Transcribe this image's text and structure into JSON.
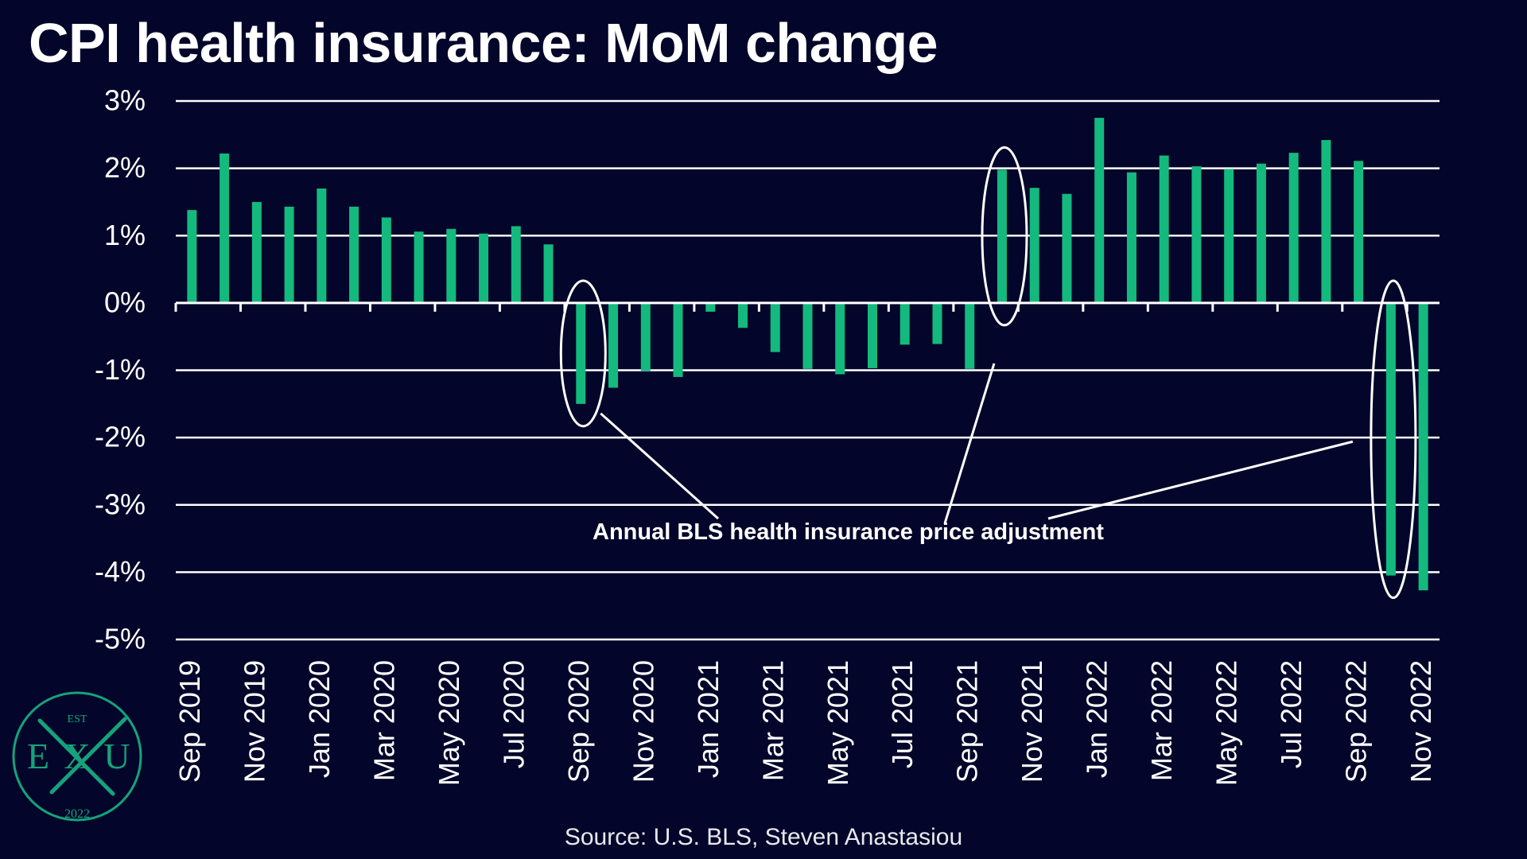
{
  "chart_data": {
    "type": "bar",
    "title": "CPI health insurance: MoM change",
    "source": "Source: U.S. BLS, Steven Anastasiou",
    "ylim": [
      -5,
      3
    ],
    "yticks": [
      3,
      2,
      1,
      0,
      -1,
      -2,
      -3,
      -4,
      -5
    ],
    "ytick_labels": [
      "3%",
      "2%",
      "1%",
      "0%",
      "-1%",
      "-2%",
      "-3%",
      "-4%",
      "-5%"
    ],
    "grid": true,
    "categories": [
      "Sep 2019",
      "Oct 2019",
      "Nov 2019",
      "Dec 2019",
      "Jan 2020",
      "Feb 2020",
      "Mar 2020",
      "Apr 2020",
      "May 2020",
      "Jun 2020",
      "Jul 2020",
      "Aug 2020",
      "Sep 2020",
      "Oct 2020",
      "Nov 2020",
      "Dec 2020",
      "Jan 2021",
      "Feb 2021",
      "Mar 2021",
      "Apr 2021",
      "May 2021",
      "Jun 2021",
      "Jul 2021",
      "Aug 2021",
      "Sep 2021",
      "Oct 2021",
      "Nov 2021",
      "Dec 2021",
      "Jan 2022",
      "Feb 2022",
      "Mar 2022",
      "Apr 2022",
      "May 2022",
      "Jun 2022",
      "Jul 2022",
      "Aug 2022",
      "Sep 2022",
      "Oct 2022",
      "Nov 2022"
    ],
    "xtick_labels": [
      "Sep 2019",
      "Nov 2019",
      "Jan 2020",
      "Mar 2020",
      "May 2020",
      "Jul 2020",
      "Sep 2020",
      "Nov 2020",
      "Jan 2021",
      "Mar 2021",
      "May 2021",
      "Jul 2021",
      "Sep 2021",
      "Nov 2021",
      "Jan 2022",
      "Mar 2022",
      "May 2022",
      "Jul 2022",
      "Sep 2022",
      "Nov 2022"
    ],
    "values": [
      1.38,
      2.22,
      1.5,
      1.43,
      1.7,
      1.43,
      1.27,
      1.06,
      1.1,
      1.03,
      1.14,
      0.87,
      -1.5,
      -1.26,
      -1.01,
      -1.1,
      -0.13,
      -0.37,
      -0.73,
      -0.98,
      -1.06,
      -0.97,
      -0.62,
      -0.61,
      -0.98,
      1.98,
      1.71,
      1.62,
      2.75,
      1.94,
      2.19,
      2.03,
      1.99,
      2.07,
      2.23,
      2.42,
      2.11,
      -4.05,
      -4.27
    ],
    "highlight_indices": [
      12,
      25,
      37
    ],
    "annotation": "Annual BLS health insurance price adjustment"
  },
  "colors": {
    "background": "#03062a",
    "bar": "#14b97e",
    "grid": "#ffffff",
    "text": "#ffffff",
    "logo": "#15a37c"
  },
  "logo": {
    "top": "EST",
    "left": "E",
    "middle": "X",
    "right": "U",
    "bottom": "2022"
  }
}
